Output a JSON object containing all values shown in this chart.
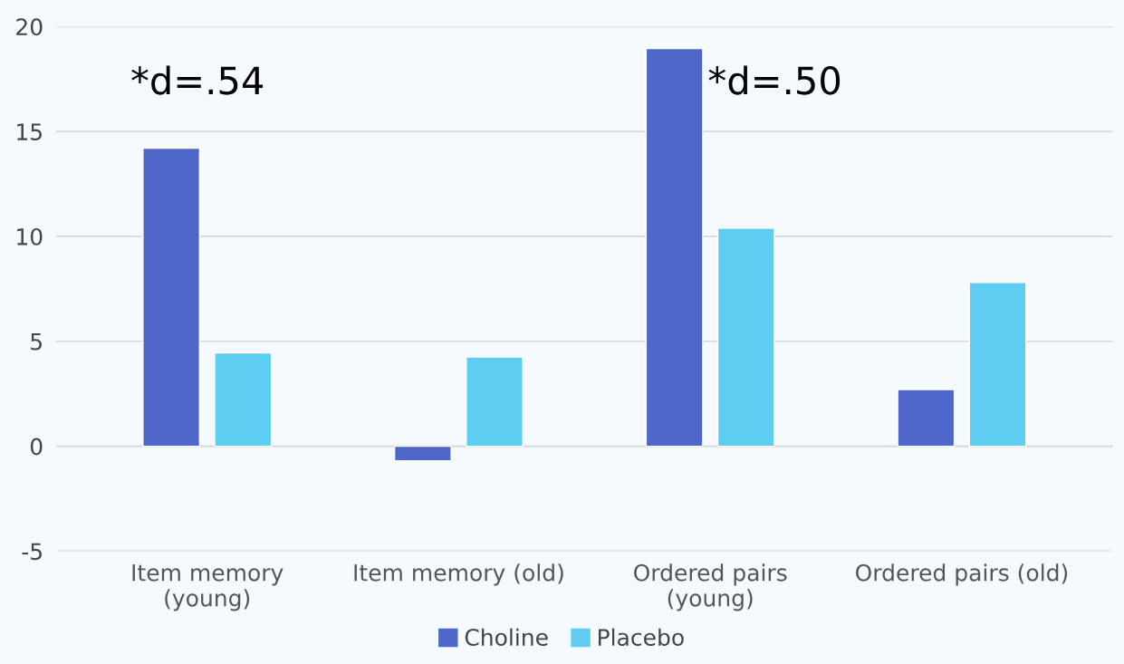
{
  "chart_data": {
    "type": "bar",
    "categories": [
      "Item memory\n(young)",
      "Item memory (old)",
      "Ordered pairs\n(young)",
      "Ordered pairs (old)"
    ],
    "series": [
      {
        "name": "Choline",
        "color": "#4f67c8",
        "values": [
          14.2,
          -0.7,
          18.95,
          2.7
        ]
      },
      {
        "name": "Placebo",
        "color": "#5ecdf2",
        "values": [
          4.45,
          4.25,
          10.4,
          7.8
        ]
      }
    ],
    "ylim": [
      -5,
      20
    ],
    "yticks": [
      -5,
      0,
      5,
      10,
      15,
      20
    ],
    "grid": "y",
    "legend": "bottom",
    "annotations": [
      "*d=.54",
      "*d=.50"
    ]
  }
}
